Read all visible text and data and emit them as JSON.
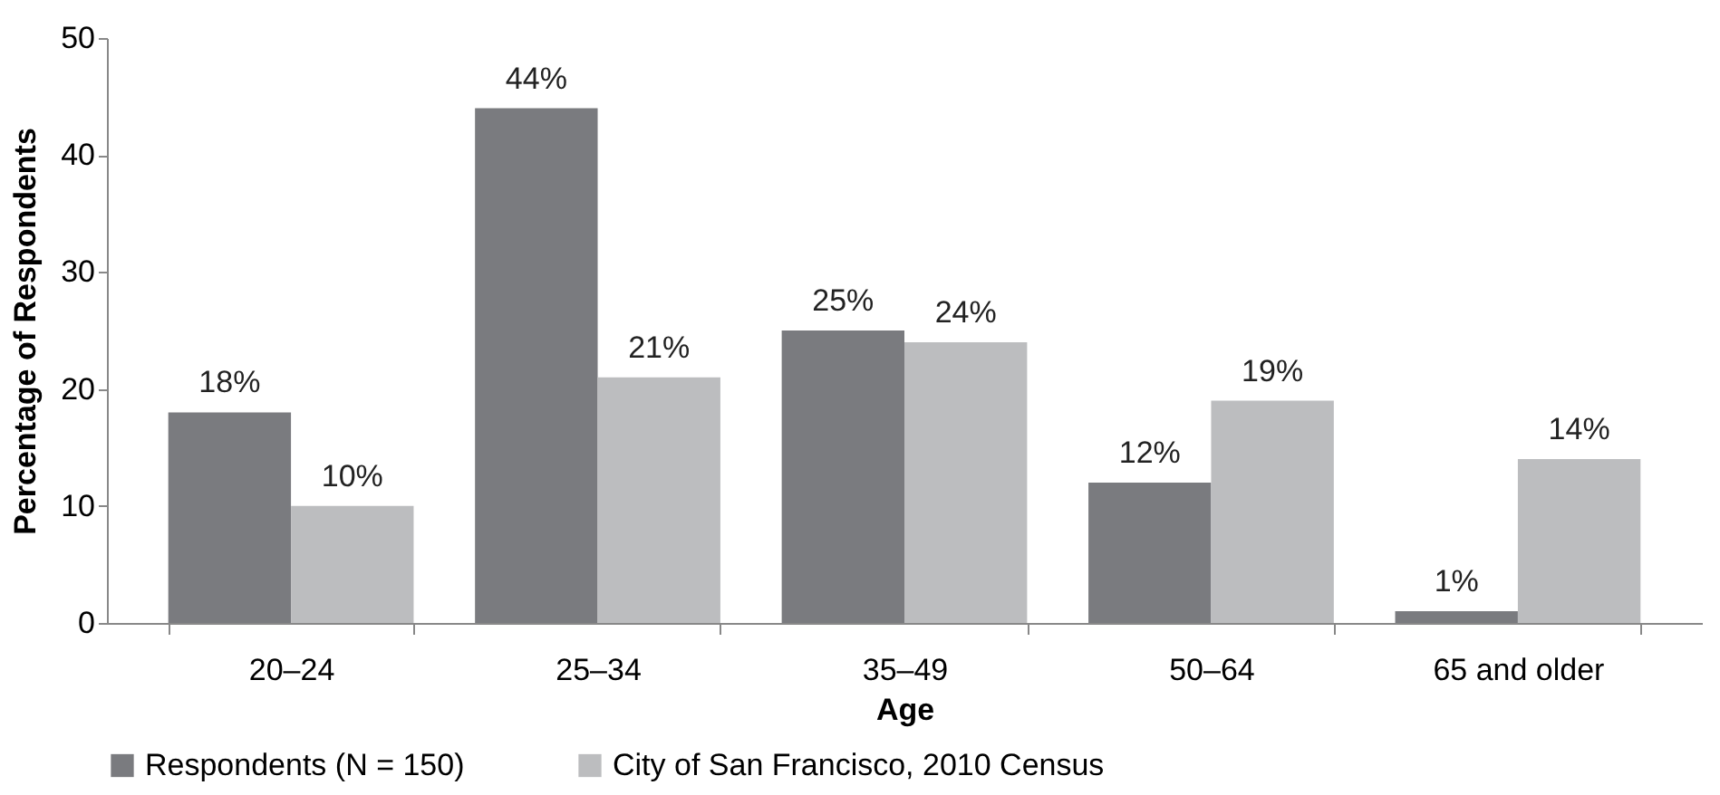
{
  "chart_data": {
    "type": "bar",
    "xlabel": "Age",
    "ylabel": "Percentage of Respondents",
    "categories": [
      "20–24",
      "25–34",
      "35–49",
      "50–64",
      "65 and older"
    ],
    "series": [
      {
        "name": "Respondents (N = 150)",
        "color": "#7a7b7f",
        "values": [
          18,
          44,
          25,
          12,
          1
        ],
        "value_labels": [
          "18%",
          "44%",
          "25%",
          "12%",
          "1%"
        ]
      },
      {
        "name": "City of San Francisco, 2010 Census",
        "color": "#bcbdbf",
        "values": [
          10,
          21,
          24,
          19,
          14
        ],
        "value_labels": [
          "10%",
          "21%",
          "24%",
          "19%",
          "14%"
        ]
      }
    ],
    "ylim": [
      0,
      50
    ],
    "yticks": [
      0,
      10,
      20,
      30,
      40,
      50
    ],
    "grid": false,
    "legend": "bottom"
  }
}
